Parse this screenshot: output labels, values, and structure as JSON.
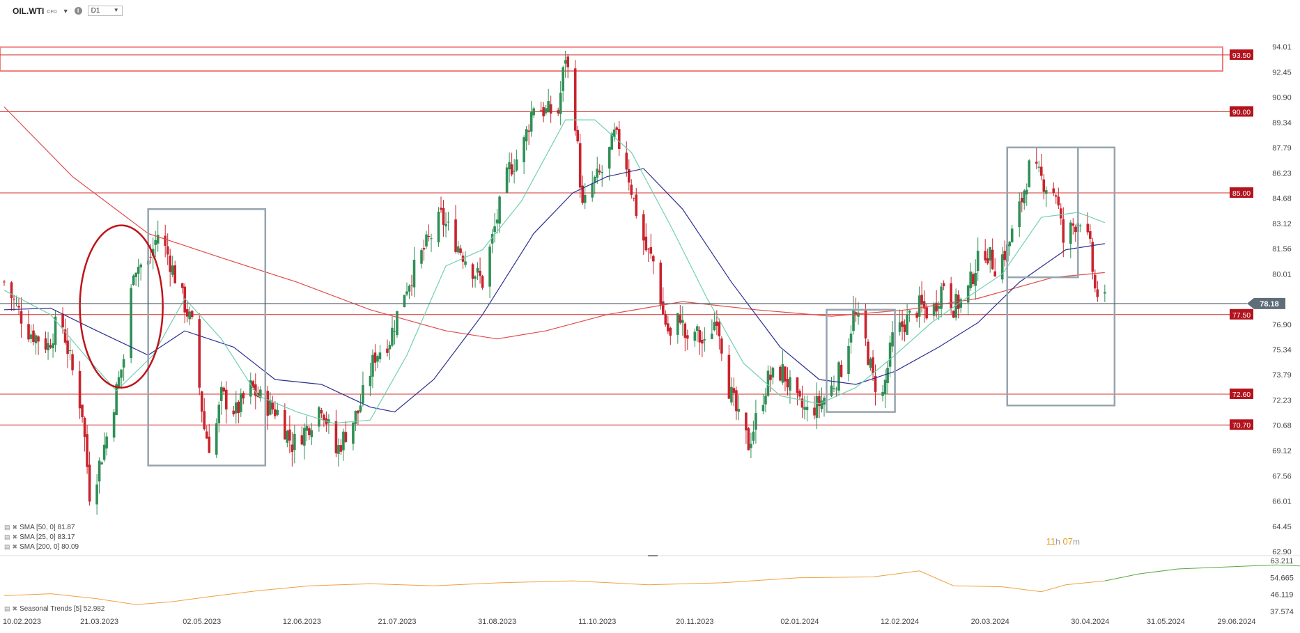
{
  "header": {
    "symbol": "OIL.WTI",
    "symbol_sub": "CFD",
    "info_icon": "info-icon",
    "timeframe": "D1",
    "dropdown_icon": "chevron-down-icon"
  },
  "legend": {
    "sma50": "SMA [50, 0] 81.87",
    "sma25": "SMA [25, 0] 83.17",
    "sma200": "SMA [200, 0] 80.09",
    "seasonal": "Seasonal  Trends [5] 52.982"
  },
  "timer": {
    "hours": "11",
    "h": "h",
    "minutes": "07",
    "m": "m"
  },
  "colors": {
    "bull": "#2f8f56",
    "bear": "#c9232c",
    "level_line": "#d0302f",
    "sma25": "#6fd0b0",
    "sma50": "#2b2f8f",
    "sma200": "#e24a4a",
    "box": "#96a4ad",
    "seasonal_hist": "#f0a040",
    "seasonal_fcst": "#58a83a"
  },
  "chart_data": {
    "type": "candlestick",
    "symbol": "OIL.WTI",
    "timeframe": "D1",
    "price_axis_ticks": [
      94.01,
      92.45,
      90.9,
      89.34,
      87.79,
      86.23,
      84.68,
      83.12,
      81.56,
      80.01,
      76.9,
      75.34,
      73.79,
      72.23,
      70.68,
      69.12,
      67.56,
      66.01,
      64.45,
      62.9
    ],
    "price_range": [
      62.9,
      95.6
    ],
    "date_labels": [
      "10.02.2023",
      "21.03.2023",
      "02.05.2023",
      "12.06.2023",
      "21.07.2023",
      "31.08.2023",
      "11.10.2023",
      "20.11.2023",
      "02.01.2024",
      "12.02.2024",
      "20.03.2024",
      "30.04.2024",
      "31.05.2024",
      "29.06.2024"
    ],
    "last_price": 78.18,
    "levels": [
      {
        "label": "93.50",
        "value": 93.5
      },
      {
        "label": "90.00",
        "value": 90.0
      },
      {
        "label": "85.00",
        "value": 85.0
      },
      {
        "label": "77.50",
        "value": 77.5
      },
      {
        "label": "72.60",
        "value": 72.6
      },
      {
        "label": "70.70",
        "value": 70.7
      }
    ],
    "zone_top": {
      "top": 93.9,
      "bottom": 92.6
    },
    "price_path": [
      {
        "date": "2023-02-10",
        "v": 79.5
      },
      {
        "date": "2023-02-20",
        "v": 76.5
      },
      {
        "date": "2023-02-28",
        "v": 75.6
      },
      {
        "date": "2023-03-05",
        "v": 77.5
      },
      {
        "date": "2023-03-10",
        "v": 74.0
      },
      {
        "date": "2023-03-14",
        "v": 71.5
      },
      {
        "date": "2023-03-17",
        "v": 66.5
      },
      {
        "date": "2023-03-20",
        "v": 67.7
      },
      {
        "date": "2023-03-24",
        "v": 70.0
      },
      {
        "date": "2023-03-28",
        "v": 72.8
      },
      {
        "date": "2023-04-01",
        "v": 75.5
      },
      {
        "date": "2023-04-04",
        "v": 80.5
      },
      {
        "date": "2023-04-10",
        "v": 80.6
      },
      {
        "date": "2023-04-14",
        "v": 82.5
      },
      {
        "date": "2023-04-18",
        "v": 81.2
      },
      {
        "date": "2023-04-24",
        "v": 78.5
      },
      {
        "date": "2023-04-28",
        "v": 76.8
      },
      {
        "date": "2023-05-03",
        "v": 70.5
      },
      {
        "date": "2023-05-06",
        "v": 69.0
      },
      {
        "date": "2023-05-10",
        "v": 72.5
      },
      {
        "date": "2023-05-16",
        "v": 71.5
      },
      {
        "date": "2023-05-22",
        "v": 73.0
      },
      {
        "date": "2023-05-28",
        "v": 72.0
      },
      {
        "date": "2023-06-02",
        "v": 71.5
      },
      {
        "date": "2023-06-08",
        "v": 69.5
      },
      {
        "date": "2023-06-14",
        "v": 70.5
      },
      {
        "date": "2023-06-20",
        "v": 72.0
      },
      {
        "date": "2023-06-26",
        "v": 69.0
      },
      {
        "date": "2023-07-01",
        "v": 70.5
      },
      {
        "date": "2023-07-05",
        "v": 71.5
      },
      {
        "date": "2023-07-12",
        "v": 75.0
      },
      {
        "date": "2023-07-18",
        "v": 76.0
      },
      {
        "date": "2023-07-24",
        "v": 79.0
      },
      {
        "date": "2023-08-01",
        "v": 81.5
      },
      {
        "date": "2023-08-08",
        "v": 83.5
      },
      {
        "date": "2023-08-14",
        "v": 82.0
      },
      {
        "date": "2023-08-20",
        "v": 80.5
      },
      {
        "date": "2023-08-25",
        "v": 79.5
      },
      {
        "date": "2023-08-31",
        "v": 83.5
      },
      {
        "date": "2023-09-05",
        "v": 86.5
      },
      {
        "date": "2023-09-10",
        "v": 87.5
      },
      {
        "date": "2023-09-15",
        "v": 90.5
      },
      {
        "date": "2023-09-20",
        "v": 90.0
      },
      {
        "date": "2023-09-25",
        "v": 90.0
      },
      {
        "date": "2023-09-28",
        "v": 93.5
      },
      {
        "date": "2023-10-02",
        "v": 89.5
      },
      {
        "date": "2023-10-05",
        "v": 84.0
      },
      {
        "date": "2023-10-09",
        "v": 85.5
      },
      {
        "date": "2023-10-14",
        "v": 86.5
      },
      {
        "date": "2023-10-18",
        "v": 88.5
      },
      {
        "date": "2023-10-22",
        "v": 87.5
      },
      {
        "date": "2023-10-26",
        "v": 84.5
      },
      {
        "date": "2023-10-31",
        "v": 81.5
      },
      {
        "date": "2023-11-04",
        "v": 80.5
      },
      {
        "date": "2023-11-07",
        "v": 77.5
      },
      {
        "date": "2023-11-10",
        "v": 76.0
      },
      {
        "date": "2023-11-14",
        "v": 77.5
      },
      {
        "date": "2023-11-17",
        "v": 75.5
      },
      {
        "date": "2023-11-20",
        "v": 76.5
      },
      {
        "date": "2023-11-24",
        "v": 75.5
      },
      {
        "date": "2023-11-29",
        "v": 77.5
      },
      {
        "date": "2023-12-04",
        "v": 73.0
      },
      {
        "date": "2023-12-08",
        "v": 71.0
      },
      {
        "date": "2023-12-12",
        "v": 69.5
      },
      {
        "date": "2023-12-16",
        "v": 71.5
      },
      {
        "date": "2023-12-20",
        "v": 73.5
      },
      {
        "date": "2023-12-26",
        "v": 74.0
      },
      {
        "date": "2024-01-01",
        "v": 72.0
      },
      {
        "date": "2024-01-05",
        "v": 71.5
      },
      {
        "date": "2024-01-10",
        "v": 72.0
      },
      {
        "date": "2024-01-15",
        "v": 73.0
      },
      {
        "date": "2024-01-20",
        "v": 74.5
      },
      {
        "date": "2024-01-24",
        "v": 77.5
      },
      {
        "date": "2024-01-28",
        "v": 76.5
      },
      {
        "date": "2024-02-01",
        "v": 73.5
      },
      {
        "date": "2024-02-05",
        "v": 72.5
      },
      {
        "date": "2024-02-09",
        "v": 76.0
      },
      {
        "date": "2024-02-14",
        "v": 77.0
      },
      {
        "date": "2024-02-20",
        "v": 78.0
      },
      {
        "date": "2024-02-25",
        "v": 77.5
      },
      {
        "date": "2024-03-01",
        "v": 79.5
      },
      {
        "date": "2024-03-05",
        "v": 78.0
      },
      {
        "date": "2024-03-10",
        "v": 78.5
      },
      {
        "date": "2024-03-14",
        "v": 80.5
      },
      {
        "date": "2024-03-18",
        "v": 81.5
      },
      {
        "date": "2024-03-22",
        "v": 80.5
      },
      {
        "date": "2024-03-27",
        "v": 81.5
      },
      {
        "date": "2024-04-01",
        "v": 84.0
      },
      {
        "date": "2024-04-05",
        "v": 86.5
      },
      {
        "date": "2024-04-09",
        "v": 86.0
      },
      {
        "date": "2024-04-12",
        "v": 85.5
      },
      {
        "date": "2024-04-16",
        "v": 85.0
      },
      {
        "date": "2024-04-19",
        "v": 82.0
      },
      {
        "date": "2024-04-23",
        "v": 83.0
      },
      {
        "date": "2024-04-26",
        "v": 83.5
      },
      {
        "date": "2024-04-30",
        "v": 81.5
      },
      {
        "date": "2024-05-02",
        "v": 79.0
      },
      {
        "date": "2024-05-06",
        "v": 78.2
      }
    ],
    "sma25": [
      {
        "date": "2023-02-10",
        "v": 79.0
      },
      {
        "date": "2023-03-01",
        "v": 77.5
      },
      {
        "date": "2023-03-15",
        "v": 75.0
      },
      {
        "date": "2023-03-28",
        "v": 72.8
      },
      {
        "date": "2023-04-12",
        "v": 75.0
      },
      {
        "date": "2023-04-25",
        "v": 78.5
      },
      {
        "date": "2023-05-10",
        "v": 76.0
      },
      {
        "date": "2023-05-25",
        "v": 72.5
      },
      {
        "date": "2023-06-10",
        "v": 71.5
      },
      {
        "date": "2023-06-25",
        "v": 70.8
      },
      {
        "date": "2023-07-10",
        "v": 71.0
      },
      {
        "date": "2023-07-25",
        "v": 75.0
      },
      {
        "date": "2023-08-10",
        "v": 80.5
      },
      {
        "date": "2023-08-25",
        "v": 81.5
      },
      {
        "date": "2023-09-10",
        "v": 84.5
      },
      {
        "date": "2023-09-28",
        "v": 89.5
      },
      {
        "date": "2023-10-10",
        "v": 89.5
      },
      {
        "date": "2023-10-25",
        "v": 87.5
      },
      {
        "date": "2023-11-10",
        "v": 83.0
      },
      {
        "date": "2023-11-25",
        "v": 78.5
      },
      {
        "date": "2023-12-10",
        "v": 74.5
      },
      {
        "date": "2023-12-25",
        "v": 72.5
      },
      {
        "date": "2024-01-10",
        "v": 72.0
      },
      {
        "date": "2024-01-25",
        "v": 73.0
      },
      {
        "date": "2024-02-10",
        "v": 75.0
      },
      {
        "date": "2024-02-25",
        "v": 77.0
      },
      {
        "date": "2024-03-10",
        "v": 78.5
      },
      {
        "date": "2024-03-25",
        "v": 80.0
      },
      {
        "date": "2024-04-10",
        "v": 83.5
      },
      {
        "date": "2024-04-25",
        "v": 83.8
      },
      {
        "date": "2024-05-06",
        "v": 83.17
      }
    ],
    "sma50": [
      {
        "date": "2023-02-10",
        "v": 77.8
      },
      {
        "date": "2023-03-01",
        "v": 77.9
      },
      {
        "date": "2023-03-20",
        "v": 76.5
      },
      {
        "date": "2023-04-10",
        "v": 75.0
      },
      {
        "date": "2023-04-25",
        "v": 76.5
      },
      {
        "date": "2023-05-15",
        "v": 75.5
      },
      {
        "date": "2023-06-01",
        "v": 73.5
      },
      {
        "date": "2023-06-20",
        "v": 73.2
      },
      {
        "date": "2023-07-10",
        "v": 71.8
      },
      {
        "date": "2023-07-20",
        "v": 71.5
      },
      {
        "date": "2023-08-05",
        "v": 73.5
      },
      {
        "date": "2023-08-25",
        "v": 77.5
      },
      {
        "date": "2023-09-15",
        "v": 82.5
      },
      {
        "date": "2023-10-01",
        "v": 85.0
      },
      {
        "date": "2023-10-15",
        "v": 86.0
      },
      {
        "date": "2023-10-30",
        "v": 86.5
      },
      {
        "date": "2023-11-15",
        "v": 84.0
      },
      {
        "date": "2023-12-05",
        "v": 79.5
      },
      {
        "date": "2023-12-25",
        "v": 75.5
      },
      {
        "date": "2024-01-10",
        "v": 73.5
      },
      {
        "date": "2024-01-25",
        "v": 73.2
      },
      {
        "date": "2024-02-10",
        "v": 74.0
      },
      {
        "date": "2024-02-28",
        "v": 75.5
      },
      {
        "date": "2024-03-15",
        "v": 77.0
      },
      {
        "date": "2024-04-01",
        "v": 79.5
      },
      {
        "date": "2024-04-20",
        "v": 81.5
      },
      {
        "date": "2024-05-06",
        "v": 81.87
      }
    ],
    "sma200": [
      {
        "date": "2023-02-10",
        "v": 90.3
      },
      {
        "date": "2023-03-10",
        "v": 86.0
      },
      {
        "date": "2023-04-10",
        "v": 82.5
      },
      {
        "date": "2023-05-10",
        "v": 81.0
      },
      {
        "date": "2023-06-10",
        "v": 79.5
      },
      {
        "date": "2023-07-10",
        "v": 77.8
      },
      {
        "date": "2023-08-10",
        "v": 76.5
      },
      {
        "date": "2023-08-31",
        "v": 76.0
      },
      {
        "date": "2023-09-20",
        "v": 76.5
      },
      {
        "date": "2023-10-15",
        "v": 77.5
      },
      {
        "date": "2023-11-15",
        "v": 78.3
      },
      {
        "date": "2023-12-15",
        "v": 77.8
      },
      {
        "date": "2024-01-15",
        "v": 77.4
      },
      {
        "date": "2024-02-15",
        "v": 77.8
      },
      {
        "date": "2024-03-15",
        "v": 78.5
      },
      {
        "date": "2024-04-15",
        "v": 79.8
      },
      {
        "date": "2024-05-06",
        "v": 80.09
      }
    ],
    "seasonal": {
      "range": [
        37.574,
        63.211
      ],
      "ticks": [
        63.211,
        54.665,
        46.119,
        37.574
      ],
      "last": 52.982,
      "history": [
        {
          "date": "2023-02-10",
          "v": 45.5
        },
        {
          "date": "2023-03-01",
          "v": 46.5
        },
        {
          "date": "2023-03-20",
          "v": 44.0
        },
        {
          "date": "2023-04-05",
          "v": 41.0
        },
        {
          "date": "2023-04-20",
          "v": 42.5
        },
        {
          "date": "2023-05-05",
          "v": 45.0
        },
        {
          "date": "2023-05-25",
          "v": 48.0
        },
        {
          "date": "2023-06-15",
          "v": 50.5
        },
        {
          "date": "2023-07-10",
          "v": 51.5
        },
        {
          "date": "2023-08-05",
          "v": 50.5
        },
        {
          "date": "2023-09-01",
          "v": 52.0
        },
        {
          "date": "2023-10-01",
          "v": 53.0
        },
        {
          "date": "2023-11-01",
          "v": 51.0
        },
        {
          "date": "2023-12-01",
          "v": 52.0
        },
        {
          "date": "2024-01-01",
          "v": 54.5
        },
        {
          "date": "2024-02-01",
          "v": 55.0
        },
        {
          "date": "2024-02-20",
          "v": 58.0
        },
        {
          "date": "2024-03-05",
          "v": 50.5
        },
        {
          "date": "2024-03-25",
          "v": 50.0
        },
        {
          "date": "2024-04-10",
          "v": 47.5
        },
        {
          "date": "2024-04-20",
          "v": 51.0
        },
        {
          "date": "2024-05-06",
          "v": 52.98
        }
      ],
      "forecast": [
        {
          "date": "2024-05-06",
          "v": 52.98
        },
        {
          "date": "2024-05-20",
          "v": 56.5
        },
        {
          "date": "2024-06-05",
          "v": 59.0
        },
        {
          "date": "2024-06-25",
          "v": 60.0
        },
        {
          "date": "2024-07-15",
          "v": 61.0
        },
        {
          "date": "2024-07-25",
          "v": 60.5
        },
        {
          "date": "2024-08-05",
          "v": 61.5
        }
      ]
    }
  }
}
